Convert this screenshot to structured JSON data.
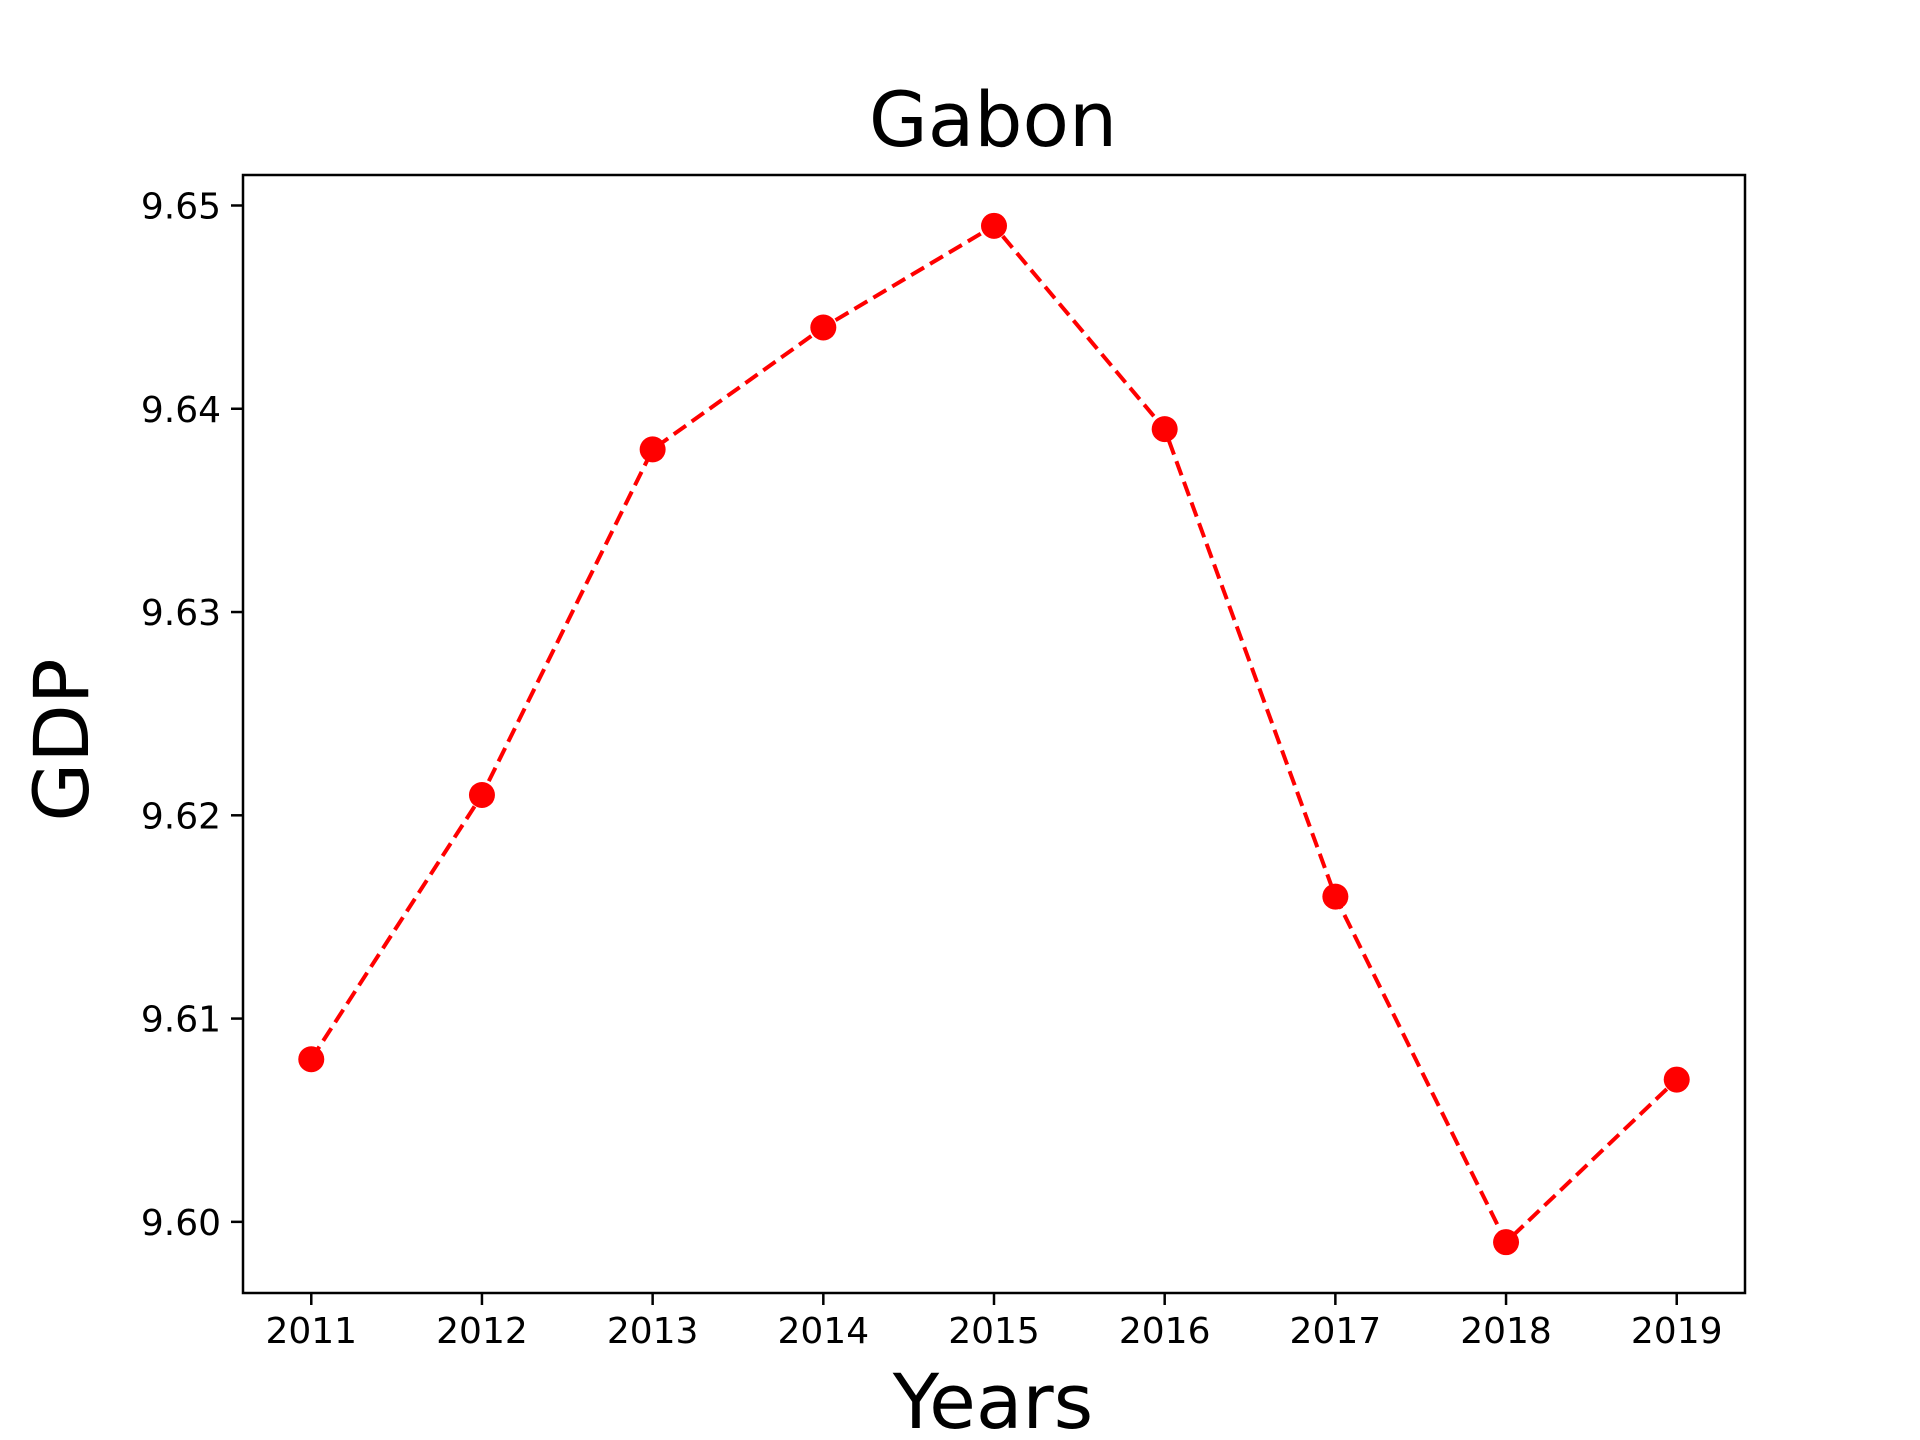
{
  "chart_data": {
    "type": "line",
    "title": "Gabon",
    "xlabel": "Years",
    "ylabel": "GDP",
    "x": [
      2011,
      2012,
      2013,
      2014,
      2015,
      2016,
      2017,
      2018,
      2019
    ],
    "series": [
      {
        "values": [
          9.608,
          9.621,
          9.638,
          9.644,
          9.649,
          9.639,
          9.616,
          9.599,
          9.607
        ],
        "color": "#ff0000",
        "line_style": "dashed",
        "marker": "circle"
      }
    ],
    "x_ticks": [
      "2011",
      "2012",
      "2013",
      "2014",
      "2015",
      "2016",
      "2017",
      "2018",
      "2019"
    ],
    "y_ticks": [
      "9.60",
      "9.61",
      "9.62",
      "9.63",
      "9.64",
      "9.65"
    ],
    "xlim": [
      2010.6,
      2019.4
    ],
    "ylim": [
      9.5965,
      9.6515
    ],
    "grid": false,
    "legend": "none"
  }
}
